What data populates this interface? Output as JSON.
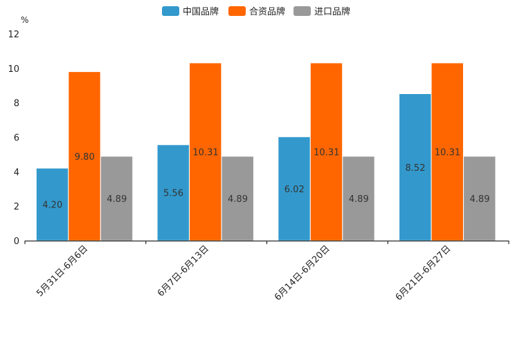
{
  "chart_data": {
    "type": "bar",
    "title": "",
    "xlabel": "",
    "ylabel": "%",
    "ylim": [
      0,
      12
    ],
    "yticks": [
      0,
      2,
      4,
      6,
      8,
      10,
      12
    ],
    "grid": false,
    "legend_position": "top-center",
    "categories": [
      "5月31日-6月6日",
      "6月7日-6月13日",
      "6月14日-6月20日",
      "6月21日-6月27日"
    ],
    "series": [
      {
        "name": "中国品牌",
        "color": "#3399cc",
        "values": [
          4.2,
          5.56,
          6.02,
          8.52
        ],
        "labels": [
          "4.20",
          "5.56",
          "6.02",
          "8.52"
        ]
      },
      {
        "name": "合资品牌",
        "color": "#ff6600",
        "values": [
          9.8,
          10.31,
          10.31,
          10.31
        ],
        "labels": [
          "9.80",
          "10.31",
          "10.31",
          "10.31"
        ]
      },
      {
        "name": "进口品牌",
        "color": "#999999",
        "values": [
          4.89,
          4.89,
          4.89,
          4.89
        ],
        "labels": [
          "4.89",
          "4.89",
          "4.89",
          "4.89"
        ]
      }
    ]
  }
}
